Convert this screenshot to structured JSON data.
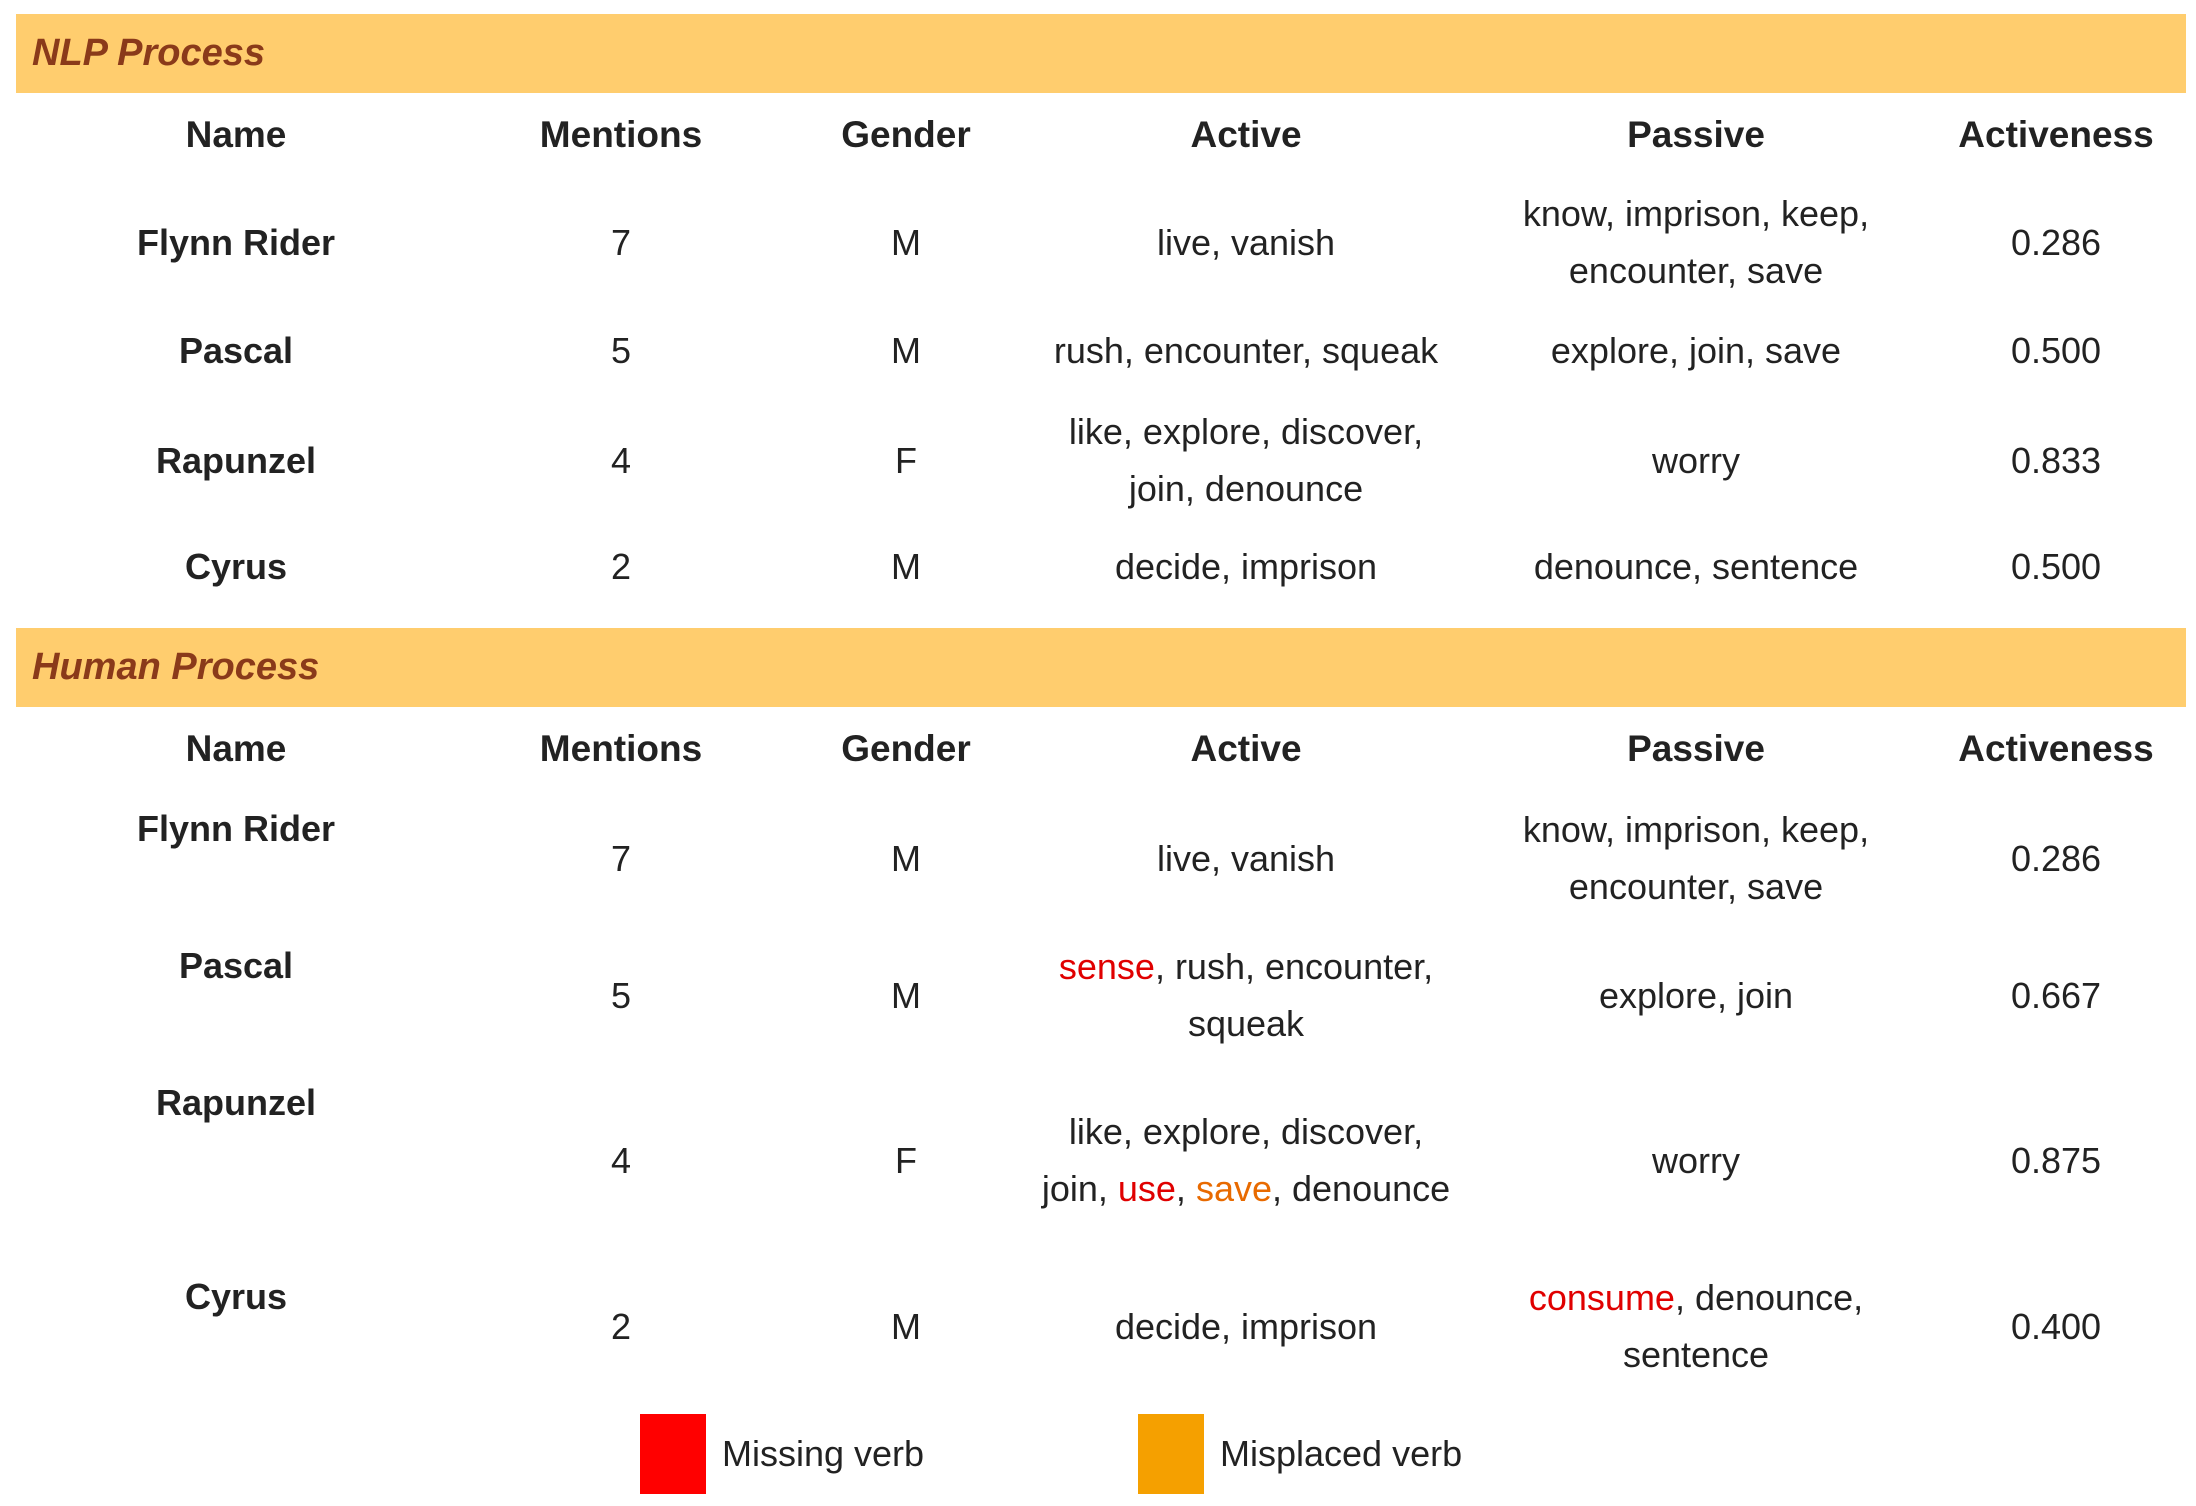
{
  "columns": {
    "name": "Name",
    "mentions": "Mentions",
    "gender": "Gender",
    "active": "Active",
    "passive": "Passive",
    "activeness": "Activeness"
  },
  "nlp": {
    "title": "NLP Process",
    "rows": [
      {
        "name": "Flynn Rider",
        "mentions": "7",
        "gender": "M",
        "active": "live, vanish",
        "passive_line1": "know, imprison, keep,",
        "passive_line2": "encounter, save",
        "activeness": "0.286"
      },
      {
        "name": "Pascal",
        "mentions": "5",
        "gender": "M",
        "active": "rush, encounter, squeak",
        "passive": "explore, join, save",
        "activeness": "0.500"
      },
      {
        "name": "Rapunzel",
        "mentions": "4",
        "gender": "F",
        "active_line1": "like, explore, discover,",
        "active_line2": "join, denounce",
        "passive": "worry",
        "activeness": "0.833"
      },
      {
        "name": "Cyrus",
        "mentions": "2",
        "gender": "M",
        "active": "decide, imprison",
        "passive": "denounce, sentence",
        "activeness": "0.500"
      }
    ]
  },
  "human": {
    "title": "Human Process",
    "rows": [
      {
        "name": "Flynn Rider",
        "mentions": "7",
        "gender": "M",
        "active": "live, vanish",
        "passive_line1": "know, imprison, keep,",
        "passive_line2": "encounter, save",
        "activeness": "0.286"
      },
      {
        "name": "Pascal",
        "mentions": "5",
        "gender": "M",
        "active_missing": "sense",
        "active_rest": ", rush, encounter,",
        "active_line2": "squeak",
        "passive": "explore, join",
        "activeness": "0.667"
      },
      {
        "name": "Rapunzel",
        "mentions": "4",
        "gender": "F",
        "active_line1": "like, explore, discover,",
        "active_pre": "join, ",
        "active_missing": "use",
        "active_sep": ", ",
        "active_misplaced": "save",
        "active_post": ",",
        "active_line3": "denounce",
        "passive": "worry",
        "activeness": "0.875"
      },
      {
        "name": "Cyrus",
        "mentions": "2",
        "gender": "M",
        "active": "decide, imprison",
        "passive_missing": "consume",
        "passive_rest": ", denounce,",
        "passive_line2": "sentence",
        "activeness": "0.400"
      }
    ]
  },
  "legend": {
    "missing": {
      "label": "Missing verb",
      "color": "#ff0000"
    },
    "misplaced": {
      "label": "Misplaced verb",
      "color": "#f5a000"
    }
  }
}
